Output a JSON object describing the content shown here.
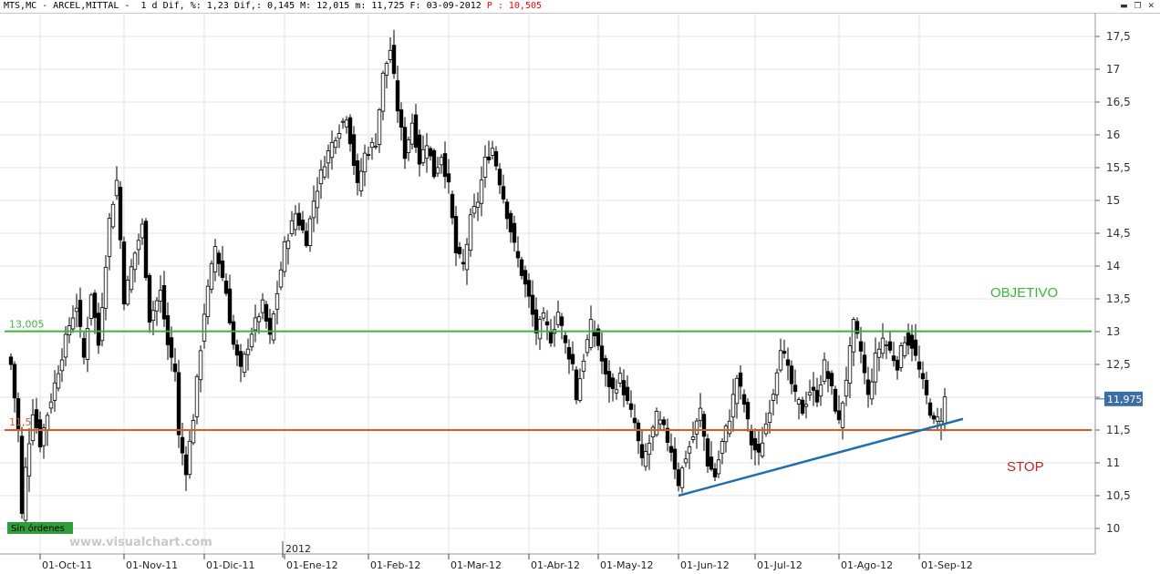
{
  "header": {
    "info": "MTS,MC - ARCEL,MITTAL -  1 d Dif, %: 1,23 Dif,: 0,145 M: 12,015 m: 11,725 F: 03-09-2012 ",
    "p_label": "P : 10,505"
  },
  "colors": {
    "objective": "#3cb43c",
    "stop": "#e05a1e",
    "trend": "#1f6fb0",
    "price_tag_bg": "#3a6ea5",
    "stop_text": "#c81e1e"
  },
  "annotations": {
    "objective_label": "OBJETIVO",
    "stop_label": "STOP",
    "objective_value": "13,005",
    "stop_value": "11,5",
    "last_price": "11,975",
    "orders_label": "Sin órdenes",
    "watermark": "www.visualchart.com",
    "year_label": "2012"
  },
  "chart_data": {
    "type": "candlestick",
    "symbol": "MTS,MC",
    "name": "ARCEL,MITTAL",
    "period": "1 d",
    "y_axis": {
      "min": 9.9,
      "max": 17.8,
      "ticks": [
        10,
        10.5,
        11,
        11.5,
        12,
        12.5,
        13,
        13.5,
        14,
        14.5,
        15,
        15.5,
        16,
        16.5,
        17,
        17.5
      ],
      "tick_labels": [
        "10",
        "10,5",
        "11",
        "11,5",
        "12",
        "12,5",
        "13",
        "13,5",
        "14",
        "14,5",
        "15",
        "15,5",
        "16",
        "16,5",
        "17",
        "17,5"
      ],
      "position": "right"
    },
    "x_axis": {
      "tick_labels": [
        "01-Oct-11",
        "01-Nov-11",
        "01-Dic-11",
        "01-Ene-12",
        "01-Feb-12",
        "01-Mar-12",
        "01-Abr-12",
        "01-May-12",
        "01-Jun-12",
        "01-Jul-12",
        "01-Ago-12",
        "01-Sep-12"
      ],
      "tick_index": [
        8,
        31,
        53,
        75,
        98,
        120,
        142,
        161,
        183,
        204,
        227,
        249
      ],
      "year_marker_index": 75
    },
    "horizontal_levels": [
      {
        "name": "objective",
        "value": 13.005
      },
      {
        "name": "stop",
        "value": 11.5
      }
    ],
    "trend_line": {
      "from_index": 183,
      "from_value": 10.5,
      "to_index": 261,
      "to_value": 11.67
    },
    "anchors": [
      [
        0,
        12.5
      ],
      [
        2,
        11.5
      ],
      [
        3,
        10.2
      ],
      [
        4,
        10.9
      ],
      [
        6,
        11.8
      ],
      [
        8,
        11.3
      ],
      [
        12,
        12.2
      ],
      [
        16,
        13.1
      ],
      [
        18,
        13.4
      ],
      [
        20,
        12.6
      ],
      [
        22,
        13.6
      ],
      [
        24,
        12.8
      ],
      [
        27,
        14.7
      ],
      [
        29,
        15.3
      ],
      [
        31,
        13.5
      ],
      [
        34,
        14.2
      ],
      [
        36,
        14.6
      ],
      [
        38,
        13.2
      ],
      [
        41,
        13.6
      ],
      [
        43,
        12.8
      ],
      [
        45,
        12.4
      ],
      [
        46,
        11.4
      ],
      [
        48,
        10.9
      ],
      [
        50,
        11.7
      ],
      [
        53,
        13.3
      ],
      [
        56,
        14.3
      ],
      [
        59,
        13.6
      ],
      [
        61,
        12.8
      ],
      [
        63,
        12.4
      ],
      [
        66,
        13.0
      ],
      [
        69,
        13.4
      ],
      [
        71,
        12.9
      ],
      [
        73,
        13.6
      ],
      [
        75,
        14.3
      ],
      [
        78,
        14.8
      ],
      [
        81,
        14.4
      ],
      [
        83,
        15.0
      ],
      [
        86,
        15.6
      ],
      [
        89,
        16.0
      ],
      [
        92,
        16.3
      ],
      [
        95,
        15.2
      ],
      [
        97,
        15.7
      ],
      [
        100,
        15.9
      ],
      [
        102,
        16.9
      ],
      [
        104,
        17.3
      ],
      [
        106,
        16.4
      ],
      [
        108,
        15.7
      ],
      [
        110,
        16.2
      ],
      [
        112,
        15.6
      ],
      [
        114,
        15.9
      ],
      [
        116,
        15.4
      ],
      [
        118,
        15.7
      ],
      [
        120,
        15.2
      ],
      [
        122,
        14.2
      ],
      [
        124,
        14.0
      ],
      [
        126,
        14.7
      ],
      [
        128,
        15.0
      ],
      [
        130,
        15.6
      ],
      [
        132,
        15.8
      ],
      [
        134,
        15.3
      ],
      [
        136,
        14.8
      ],
      [
        138,
        14.3
      ],
      [
        140,
        13.9
      ],
      [
        142,
        13.5
      ],
      [
        144,
        13.0
      ],
      [
        146,
        13.2
      ],
      [
        148,
        12.9
      ],
      [
        150,
        13.3
      ],
      [
        152,
        12.8
      ],
      [
        154,
        12.5
      ],
      [
        155,
        12.0
      ],
      [
        157,
        12.6
      ],
      [
        159,
        13.1
      ],
      [
        161,
        12.8
      ],
      [
        163,
        12.3
      ],
      [
        165,
        12.1
      ],
      [
        167,
        12.3
      ],
      [
        169,
        11.9
      ],
      [
        171,
        11.6
      ],
      [
        173,
        11.0
      ],
      [
        175,
        11.3
      ],
      [
        177,
        11.7
      ],
      [
        179,
        11.5
      ],
      [
        181,
        11.2
      ],
      [
        183,
        10.7
      ],
      [
        185,
        11.1
      ],
      [
        187,
        11.4
      ],
      [
        189,
        11.8
      ],
      [
        191,
        11.0
      ],
      [
        193,
        10.8
      ],
      [
        195,
        11.3
      ],
      [
        197,
        11.7
      ],
      [
        199,
        12.3
      ],
      [
        201,
        11.9
      ],
      [
        203,
        11.3
      ],
      [
        205,
        11.1
      ],
      [
        207,
        11.6
      ],
      [
        209,
        12.1
      ],
      [
        211,
        12.8
      ],
      [
        213,
        12.4
      ],
      [
        215,
        12.0
      ],
      [
        217,
        11.8
      ],
      [
        219,
        12.1
      ],
      [
        221,
        12.0
      ],
      [
        223,
        12.5
      ],
      [
        225,
        12.1
      ],
      [
        227,
        11.6
      ],
      [
        229,
        12.3
      ],
      [
        231,
        13.1
      ],
      [
        233,
        12.7
      ],
      [
        235,
        12.0
      ],
      [
        237,
        12.6
      ],
      [
        239,
        12.9
      ],
      [
        241,
        12.7
      ],
      [
        243,
        12.5
      ],
      [
        245,
        12.9
      ],
      [
        247,
        12.8
      ],
      [
        249,
        12.4
      ],
      [
        251,
        12.0
      ],
      [
        253,
        11.6
      ],
      [
        255,
        11.7
      ],
      [
        256,
        11.975
      ]
    ]
  }
}
